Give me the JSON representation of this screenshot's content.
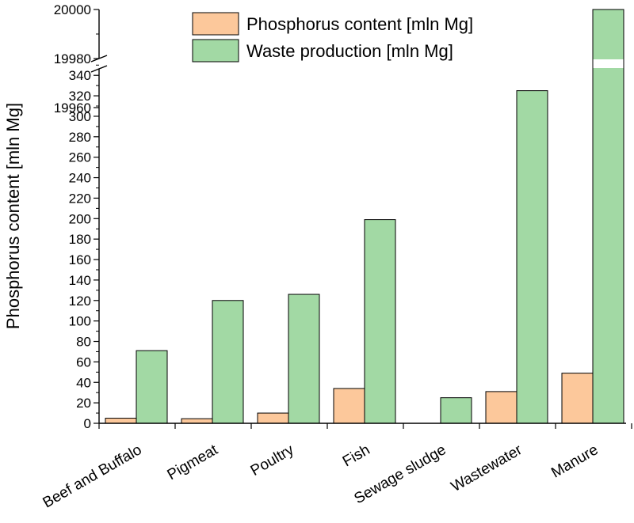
{
  "chart_data": {
    "type": "bar",
    "ylabel": "Phosphorus content  [mln Mg]",
    "categories": [
      "Beef and Buffalo",
      "Pigmeat",
      "Poultry",
      "Fish",
      "Sewage sludge",
      "Wastewater",
      "Manure"
    ],
    "series": [
      {
        "name": "Phosphorus content  [mln Mg]",
        "color": "#fcc89b",
        "values": [
          5,
          4.5,
          10,
          34,
          0,
          31,
          49
        ]
      },
      {
        "name": "Waste production [mln Mg]",
        "color": "#a2d9a4",
        "values": [
          71,
          120,
          126,
          199,
          25,
          325,
          20000
        ]
      }
    ],
    "y_axis": {
      "break": true,
      "lower_range": [
        0,
        350
      ],
      "lower_ticks": [
        0,
        20,
        40,
        60,
        80,
        100,
        120,
        140,
        160,
        180,
        200,
        220,
        240,
        260,
        280,
        300,
        320,
        340
      ],
      "upper_range": [
        19946,
        20000
      ],
      "upper_ticks": [
        19960,
        19980,
        20000
      ]
    },
    "legend_position": "top-right",
    "grid": false
  }
}
